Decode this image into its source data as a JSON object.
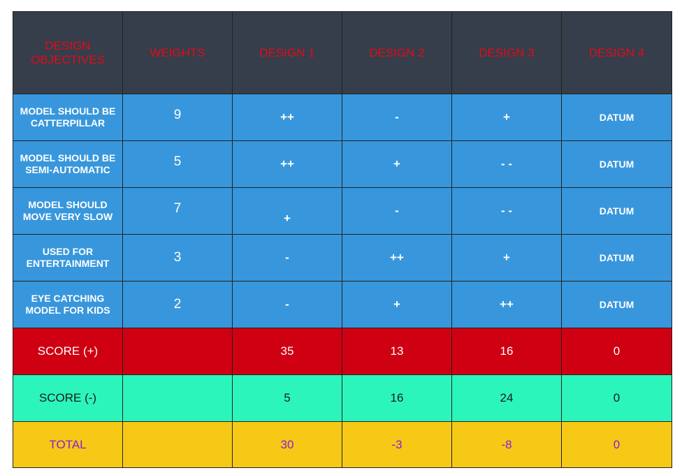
{
  "header": [
    "DESIGN OBJECTIVES",
    "WEIGHTS",
    "DESIGN 1",
    "DESIGN 2",
    "DESIGN 3",
    "DESIGN 4"
  ],
  "rows": [
    {
      "objective": "MODEL SHOULD BE CATTERPILLAR",
      "weight": "9",
      "designs": [
        "++",
        "-",
        "+",
        "DATUM"
      ]
    },
    {
      "objective": "MODEL SHOULD BE SEMI-AUTOMATIC",
      "weight": "5",
      "designs": [
        "++",
        "+",
        "- -",
        "DATUM"
      ]
    },
    {
      "objective": "MODEL SHOULD MOVE VERY SLOW",
      "weight": "7",
      "designs": [
        "+",
        "-",
        "- -",
        "DATUM"
      ]
    },
    {
      "objective": "USED FOR ENTERTAINMENT",
      "weight": "3",
      "designs": [
        "-",
        "++",
        "+",
        "DATUM"
      ]
    },
    {
      "objective": "EYE CATCHING MODEL FOR KIDS",
      "weight": "2",
      "designs": [
        "-",
        "+",
        "++",
        "DATUM"
      ]
    }
  ],
  "score_plus": {
    "label": "SCORE (+)",
    "weight": "",
    "values": [
      "35",
      "13",
      "16",
      "0"
    ]
  },
  "score_minus": {
    "label": "SCORE (-)",
    "weight": "",
    "values": [
      "5",
      "16",
      "24",
      "0"
    ]
  },
  "total": {
    "label": "TOTAL",
    "weight": "",
    "values": [
      "30",
      "-3",
      "-8",
      "0"
    ]
  },
  "colors": {
    "header_bg": "#353e4a",
    "header_text": "#e00b1c",
    "criteria_bg": "#3897dc",
    "score_plus_bg": "#cf0012",
    "score_minus_bg": "#2cf5bb",
    "total_bg": "#f6c917",
    "total_text": "#8a1bd9"
  }
}
